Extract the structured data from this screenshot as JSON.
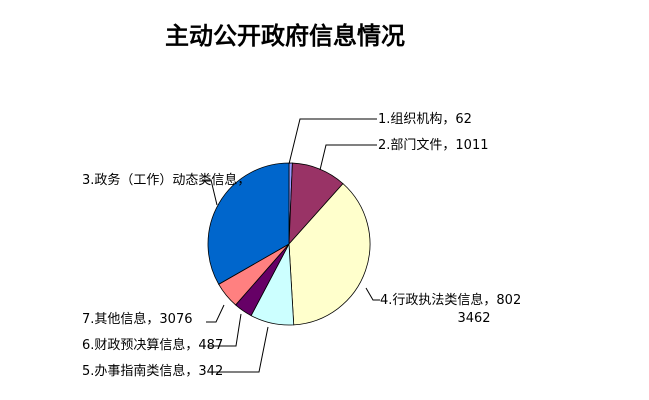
{
  "chart_data": {
    "type": "pie",
    "title": "主动公开政府信息情况",
    "start": "top",
    "direction": "clockwise",
    "slices": [
      {
        "label": "1.组织机构，62",
        "name": "1.组织机构",
        "value": 62,
        "color": "#9999FF"
      },
      {
        "label": "2.部门文件，1011",
        "name": "2.部门文件",
        "value": 1011,
        "color": "#993366"
      },
      {
        "label": "3.政务（工作）动态类信息，",
        "label2": "3462",
        "name": "3.政务（工作）动态类信息",
        "value": 3462,
        "color": "#FFFFCC"
      },
      {
        "label": "4.行政执法类信息，802",
        "name": "4.行政执法类信息",
        "value": 802,
        "color": "#CCFFFF"
      },
      {
        "label": "5.办事指南类信息，342",
        "name": "5.办事指南类信息",
        "value": 342,
        "color": "#660066"
      },
      {
        "label": "6.财政预决算信息，487",
        "name": "6.财政预决算信息",
        "value": 487,
        "color": "#FF8080"
      },
      {
        "label": "7.其他信息，3076",
        "name": "7.其他信息",
        "value": 3076,
        "color": "#0066CC"
      }
    ]
  }
}
